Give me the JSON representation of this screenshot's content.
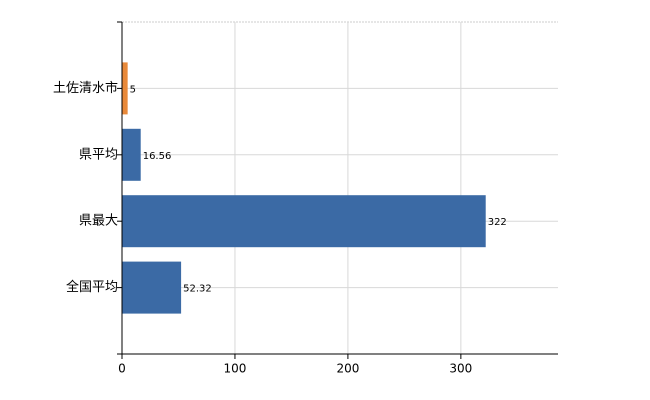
{
  "chart_data": {
    "type": "bar",
    "orientation": "horizontal",
    "categories": [
      "土佐清水市",
      "県平均",
      "県最大",
      "全国平均"
    ],
    "values": [
      5,
      16.56,
      322,
      52.32
    ],
    "colors": [
      "#e8893a",
      "#3b6aa5",
      "#3b6aa5",
      "#3b6aa5"
    ],
    "xlim": [
      0,
      386
    ],
    "xticks": [
      0,
      100,
      200,
      300
    ],
    "grid": true,
    "data_labels": true
  }
}
